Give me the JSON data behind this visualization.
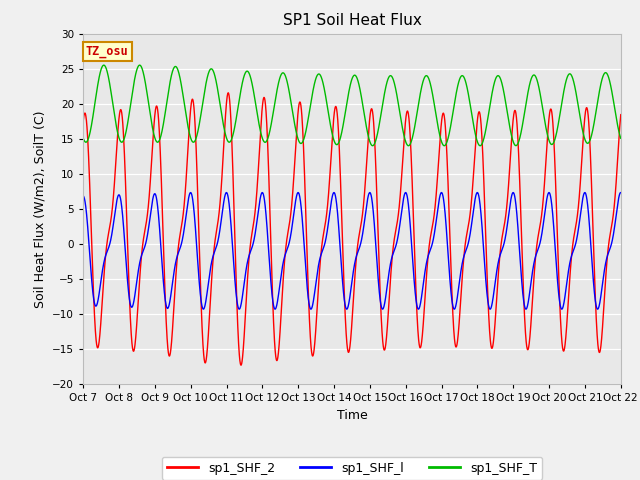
{
  "title": "SP1 Soil Heat Flux",
  "xlabel": "Time",
  "ylabel": "Soil Heat Flux (W/m2), SoilT (C)",
  "ylim": [
    -20,
    30
  ],
  "xlim": [
    0,
    15
  ],
  "yticks": [
    -20,
    -15,
    -10,
    -5,
    0,
    5,
    10,
    15,
    20,
    25,
    30
  ],
  "xtick_labels": [
    "Oct 7",
    "Oct 8",
    "Oct 9",
    "Oct 10",
    "Oct 11",
    "Oct 12",
    "Oct 13",
    "Oct 14",
    "Oct 15",
    "Oct 16",
    "Oct 17",
    "Oct 18",
    "Oct 19",
    "Oct 20",
    "Oct 21",
    "Oct 22"
  ],
  "xtick_positions": [
    0,
    1,
    2,
    3,
    4,
    5,
    6,
    7,
    8,
    9,
    10,
    11,
    12,
    13,
    14,
    15
  ],
  "line_colors": {
    "shf2": "#ff0000",
    "shf1": "#0000ff",
    "shfT": "#00bb00"
  },
  "legend_labels": [
    "sp1_SHF_2",
    "sp1_SHF_l",
    "sp1_SHF_T"
  ],
  "annotation_text": "TZ_osu",
  "annotation_facecolor": "#ffffcc",
  "annotation_edgecolor": "#cc8800",
  "annotation_textcolor": "#cc0000",
  "bg_color": "#e8e8e8",
  "fig_bg_color": "#f0f0f0",
  "grid_color": "#ffffff",
  "n_days": 15,
  "n_points": 3000
}
